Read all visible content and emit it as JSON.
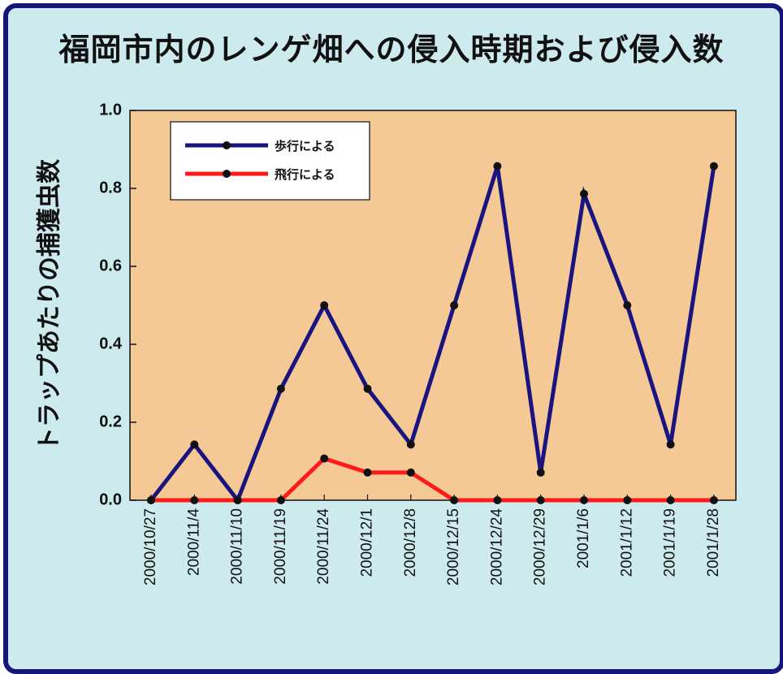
{
  "title": "福岡市内のレンゲ畑への侵入時期および侵入数",
  "chart_data": {
    "type": "line",
    "title": "福岡市内のレンゲ畑への侵入時期および侵入数",
    "xlabel": "",
    "ylabel": "トラップあたりの捕獲虫数",
    "categories": [
      "2000/10/27",
      "2000/11/4",
      "2000/11/10",
      "2000/11/19",
      "2000/11/24",
      "2000/12/1",
      "2000/12/8",
      "2000/12/15",
      "2000/12/24",
      "2000/12/29",
      "2001/1/6",
      "2001/1/12",
      "2001/1/19",
      "2001/1/28"
    ],
    "ylim": [
      0,
      1.0
    ],
    "yticks": [
      "0.0",
      "0.2",
      "0.4",
      "0.6",
      "0.8",
      "1.0"
    ],
    "series": [
      {
        "name": "歩行による",
        "color": "#1a1480",
        "values": [
          0,
          0.143,
          0,
          0.286,
          0.5,
          0.286,
          0.143,
          0.5,
          0.857,
          0.071,
          0.786,
          0.5,
          0.143,
          0.857
        ]
      },
      {
        "name": "飛行による",
        "color": "#ff1a1a",
        "values": [
          0,
          0,
          0,
          0,
          0.107,
          0.071,
          0.071,
          0,
          0,
          0,
          0,
          0,
          0,
          0
        ]
      }
    ],
    "legend_position": "top-left",
    "plot_background": "#f5c995",
    "page_background": "#cdeaee",
    "frame_color": "#16157a"
  }
}
